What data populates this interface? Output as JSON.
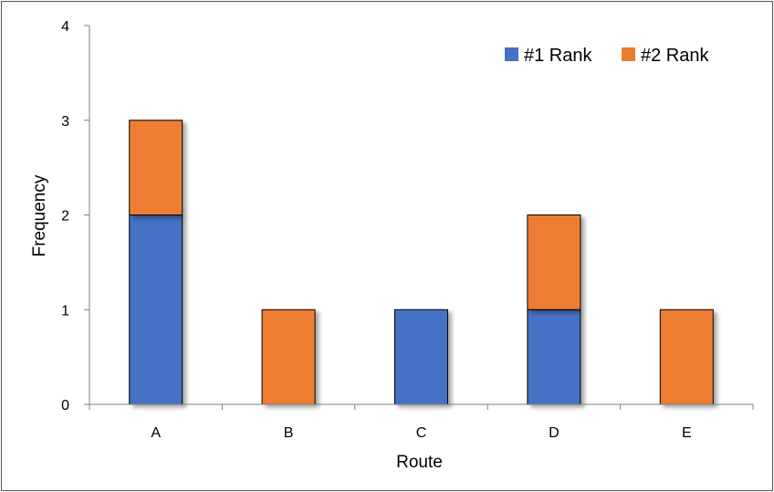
{
  "chart_data": {
    "type": "bar",
    "stacked": true,
    "categories": [
      "A",
      "B",
      "C",
      "D",
      "E"
    ],
    "series": [
      {
        "name": "#1 Rank",
        "values": [
          2,
          0,
          1,
          1,
          0
        ],
        "color": "#4472C4"
      },
      {
        "name": "#2 Rank",
        "values": [
          1,
          1,
          0,
          1,
          1
        ],
        "color": "#ED7D31"
      }
    ],
    "title": "",
    "xlabel": "Route",
    "ylabel": "Frequency",
    "ylim": [
      0,
      4
    ],
    "yticks": [
      0,
      1,
      2,
      3,
      4
    ],
    "grid": false,
    "legend_position": "top-right"
  }
}
